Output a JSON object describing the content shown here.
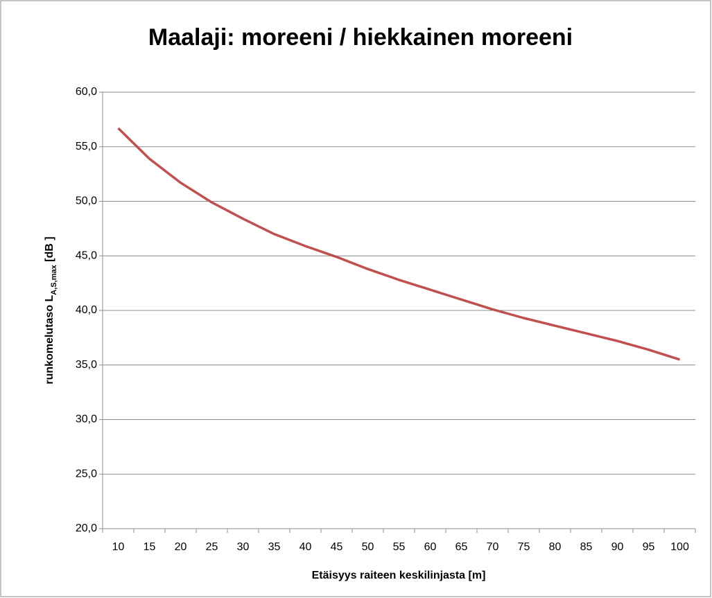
{
  "chart_data": {
    "type": "line",
    "title": "Maalaji: moreeni / hiekkainen moreeni",
    "x_label": "Etäisyys raiteen keskilinjasta [m]",
    "y_label": "runkomelutaso L",
    "y_label_sub": "A,S,max",
    "y_label_suffix": " [dB ]",
    "categories": [
      "10",
      "15",
      "20",
      "25",
      "30",
      "35",
      "40",
      "45",
      "50",
      "55",
      "60",
      "65",
      "70",
      "75",
      "80",
      "85",
      "90",
      "95",
      "100"
    ],
    "series": [
      {
        "color": "#c0504d",
        "values": [
          56.7,
          53.9,
          51.7,
          49.9,
          48.4,
          47.0,
          45.9,
          44.9,
          43.8,
          42.8,
          41.9,
          41.0,
          40.1,
          39.3,
          38.6,
          37.9,
          37.2,
          36.4,
          35.5
        ]
      }
    ],
    "ylim": [
      20,
      60
    ],
    "yticks": [
      {
        "value": 20,
        "label": "20,0"
      },
      {
        "value": 25,
        "label": "25,0"
      },
      {
        "value": 30,
        "label": "30,0"
      },
      {
        "value": 35,
        "label": "35,0"
      },
      {
        "value": 40,
        "label": "40,0"
      },
      {
        "value": 45,
        "label": "45,0"
      },
      {
        "value": 50,
        "label": "50,0"
      },
      {
        "value": 55,
        "label": "55,0"
      },
      {
        "value": 60,
        "label": "60,0"
      }
    ],
    "grid": true
  }
}
